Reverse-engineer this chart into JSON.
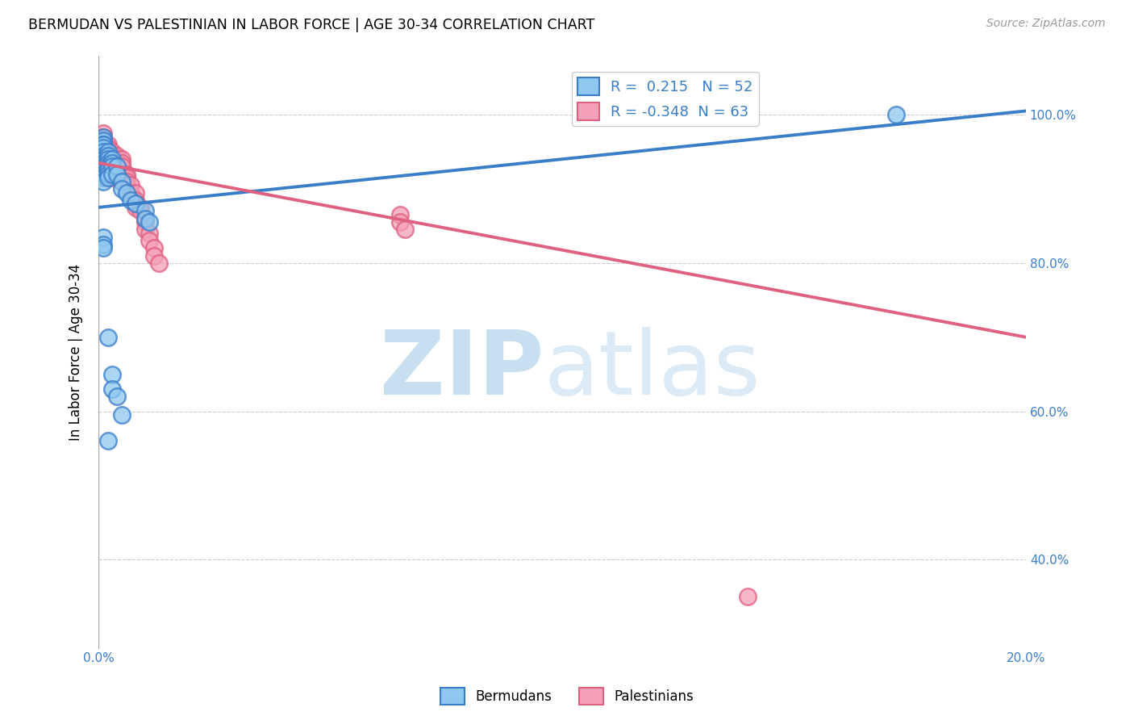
{
  "title": "BERMUDAN VS PALESTINIAN IN LABOR FORCE | AGE 30-34 CORRELATION CHART",
  "source": "Source: ZipAtlas.com",
  "ylabel": "In Labor Force | Age 30-34",
  "xlim": [
    0.0,
    0.2
  ],
  "ylim": [
    0.28,
    1.08
  ],
  "yticks": [
    0.4,
    0.6,
    0.8,
    1.0
  ],
  "yticklabels": [
    "40.0%",
    "60.0%",
    "80.0%",
    "100.0%"
  ],
  "bermudan_color": "#8EC8F0",
  "palestinian_color": "#F4A0B8",
  "bermudan_R": 0.215,
  "bermudan_N": 52,
  "palestinian_R": -0.348,
  "palestinian_N": 63,
  "blue_line_color": "#3A7DC9",
  "pink_line_color": "#E06080",
  "legend_label_blue": "Bermudans",
  "legend_label_pink": "Palestinians",
  "blue_trend": [
    0.0,
    0.875,
    0.2,
    1.005
  ],
  "pink_trend": [
    0.0,
    0.935,
    0.2,
    0.7
  ],
  "bermudan_x": [
    0.0,
    0.0,
    0.0,
    0.0,
    0.0,
    0.001,
    0.001,
    0.001,
    0.001,
    0.001,
    0.001,
    0.001,
    0.001,
    0.001,
    0.001,
    0.001,
    0.001,
    0.001,
    0.001,
    0.001,
    0.002,
    0.002,
    0.002,
    0.002,
    0.002,
    0.002,
    0.002,
    0.002,
    0.003,
    0.003,
    0.003,
    0.003,
    0.004,
    0.004,
    0.005,
    0.005,
    0.006,
    0.007,
    0.008,
    0.01,
    0.01,
    0.011,
    0.001,
    0.001,
    0.001,
    0.002,
    0.003,
    0.003,
    0.004,
    0.005,
    0.002,
    0.172
  ],
  "bermudan_y": [
    0.965,
    0.96,
    0.96,
    0.955,
    0.955,
    0.97,
    0.965,
    0.96,
    0.96,
    0.955,
    0.95,
    0.945,
    0.94,
    0.935,
    0.93,
    0.925,
    0.92,
    0.92,
    0.915,
    0.91,
    0.95,
    0.945,
    0.94,
    0.935,
    0.93,
    0.925,
    0.92,
    0.915,
    0.94,
    0.935,
    0.93,
    0.92,
    0.93,
    0.92,
    0.91,
    0.9,
    0.895,
    0.885,
    0.88,
    0.87,
    0.86,
    0.855,
    0.835,
    0.825,
    0.82,
    0.7,
    0.65,
    0.63,
    0.62,
    0.595,
    0.56,
    1.0
  ],
  "palestinian_x": [
    0.0,
    0.0,
    0.0,
    0.001,
    0.001,
    0.001,
    0.001,
    0.001,
    0.001,
    0.001,
    0.001,
    0.001,
    0.002,
    0.002,
    0.002,
    0.002,
    0.002,
    0.002,
    0.002,
    0.002,
    0.003,
    0.003,
    0.003,
    0.003,
    0.003,
    0.003,
    0.003,
    0.003,
    0.004,
    0.004,
    0.004,
    0.004,
    0.004,
    0.005,
    0.005,
    0.005,
    0.005,
    0.005,
    0.005,
    0.006,
    0.006,
    0.006,
    0.006,
    0.007,
    0.007,
    0.008,
    0.008,
    0.008,
    0.008,
    0.009,
    0.009,
    0.01,
    0.01,
    0.01,
    0.011,
    0.011,
    0.012,
    0.012,
    0.013,
    0.065,
    0.065,
    0.066,
    0.14
  ],
  "palestinian_y": [
    0.97,
    0.96,
    0.955,
    0.975,
    0.97,
    0.965,
    0.96,
    0.955,
    0.95,
    0.945,
    0.94,
    0.935,
    0.96,
    0.955,
    0.95,
    0.945,
    0.94,
    0.935,
    0.93,
    0.925,
    0.95,
    0.945,
    0.94,
    0.935,
    0.93,
    0.925,
    0.92,
    0.915,
    0.945,
    0.94,
    0.935,
    0.93,
    0.925,
    0.94,
    0.935,
    0.93,
    0.92,
    0.915,
    0.91,
    0.92,
    0.915,
    0.91,
    0.905,
    0.905,
    0.895,
    0.895,
    0.885,
    0.88,
    0.875,
    0.875,
    0.87,
    0.86,
    0.855,
    0.845,
    0.84,
    0.83,
    0.82,
    0.81,
    0.8,
    0.865,
    0.855,
    0.845,
    0.35
  ]
}
